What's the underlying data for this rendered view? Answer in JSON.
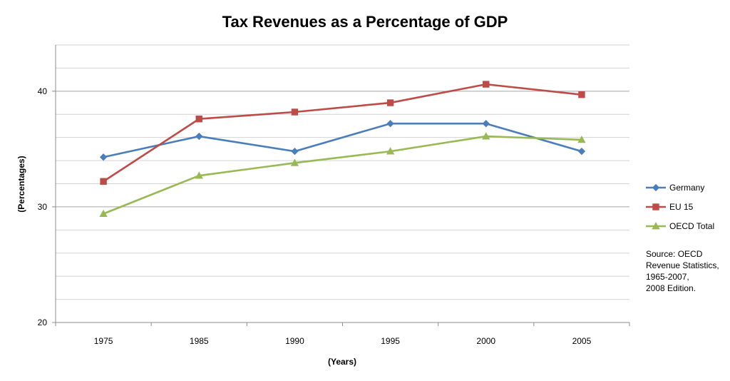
{
  "chart_data": {
    "type": "line",
    "title": "Tax Revenues as a Percentage of GDP",
    "xlabel": "(Years)",
    "ylabel": "(Percentages)",
    "categories": [
      "1975",
      "1985",
      "1990",
      "1995",
      "2000",
      "2005"
    ],
    "ylim": [
      20,
      44
    ],
    "yticks": [
      20,
      30,
      40
    ],
    "grid": true,
    "legend_position": "right",
    "series": [
      {
        "name": "Germany",
        "values": [
          34.3,
          36.1,
          34.8,
          37.2,
          37.2,
          34.8
        ],
        "color": "#4A7EBB",
        "marker": "diamond"
      },
      {
        "name": "EU 15",
        "values": [
          32.2,
          37.6,
          38.2,
          39.0,
          40.6,
          39.7
        ],
        "color": "#BE4B48",
        "marker": "square"
      },
      {
        "name": "OECD Total",
        "values": [
          29.4,
          32.7,
          33.8,
          34.8,
          36.1,
          35.8
        ],
        "color": "#98B954",
        "marker": "triangle"
      }
    ]
  },
  "source_note": "Source: OECD\nRevenue Statistics,\n1965-2007,\n2008 Edition."
}
